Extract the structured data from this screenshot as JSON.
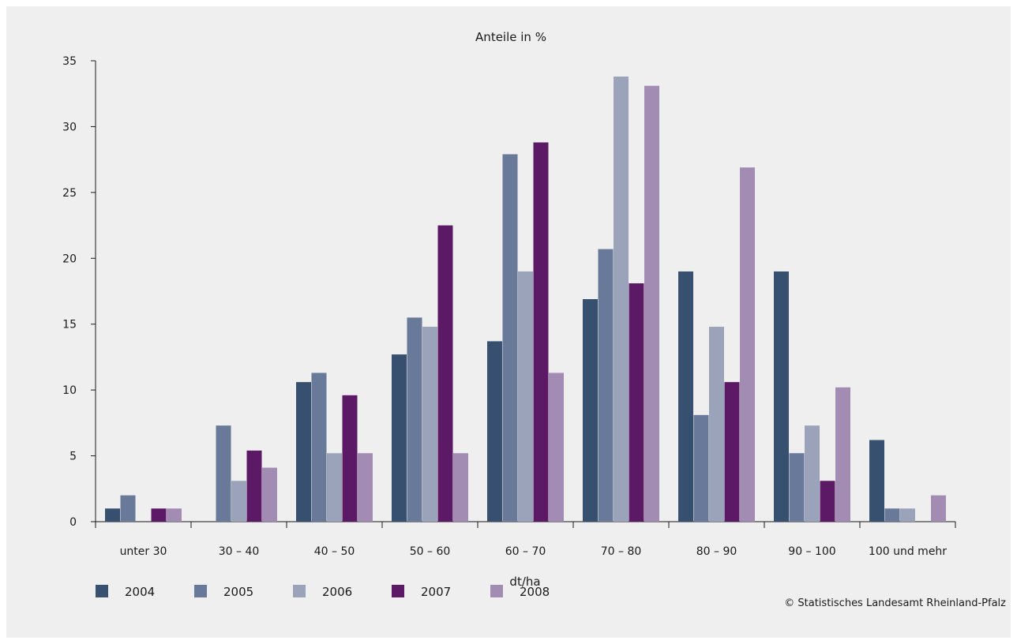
{
  "chart_data": {
    "type": "bar",
    "title": "Anteile in %",
    "xlabel": "dt/ha",
    "ylabel": "",
    "ylim": [
      0,
      35
    ],
    "yticks": [
      0,
      5,
      10,
      15,
      20,
      25,
      30,
      35
    ],
    "categories": [
      "unter 30",
      "30 – 40",
      "40 – 50",
      "50 – 60",
      "60 – 70",
      "70 – 80",
      "80 – 90",
      "90 – 100",
      "100 und mehr"
    ],
    "series": [
      {
        "name": "2004",
        "color": "#37506f",
        "values": [
          1.0,
          0.0,
          10.6,
          12.7,
          13.7,
          16.9,
          19.0,
          19.0,
          6.2
        ]
      },
      {
        "name": "2005",
        "color": "#69799a",
        "values": [
          2.0,
          7.3,
          11.3,
          15.5,
          27.9,
          20.7,
          8.1,
          5.2,
          1.0
        ]
      },
      {
        "name": "2006",
        "color": "#9aa3b9",
        "values": [
          0.0,
          3.1,
          5.2,
          14.8,
          19.0,
          33.8,
          14.8,
          7.3,
          1.0
        ]
      },
      {
        "name": "2007",
        "color": "#5c1a66",
        "values": [
          1.0,
          5.4,
          9.6,
          22.5,
          28.8,
          18.1,
          10.6,
          3.1,
          0.0
        ]
      },
      {
        "name": "2008",
        "color": "#a28cb4",
        "values": [
          1.0,
          4.1,
          5.2,
          5.2,
          11.3,
          33.1,
          26.9,
          10.2,
          2.0
        ]
      }
    ],
    "legend_position": "bottom-left",
    "grid": false
  },
  "footer": {
    "copyright": "© Statistisches Landesamt Rheinland-Pfalz"
  }
}
